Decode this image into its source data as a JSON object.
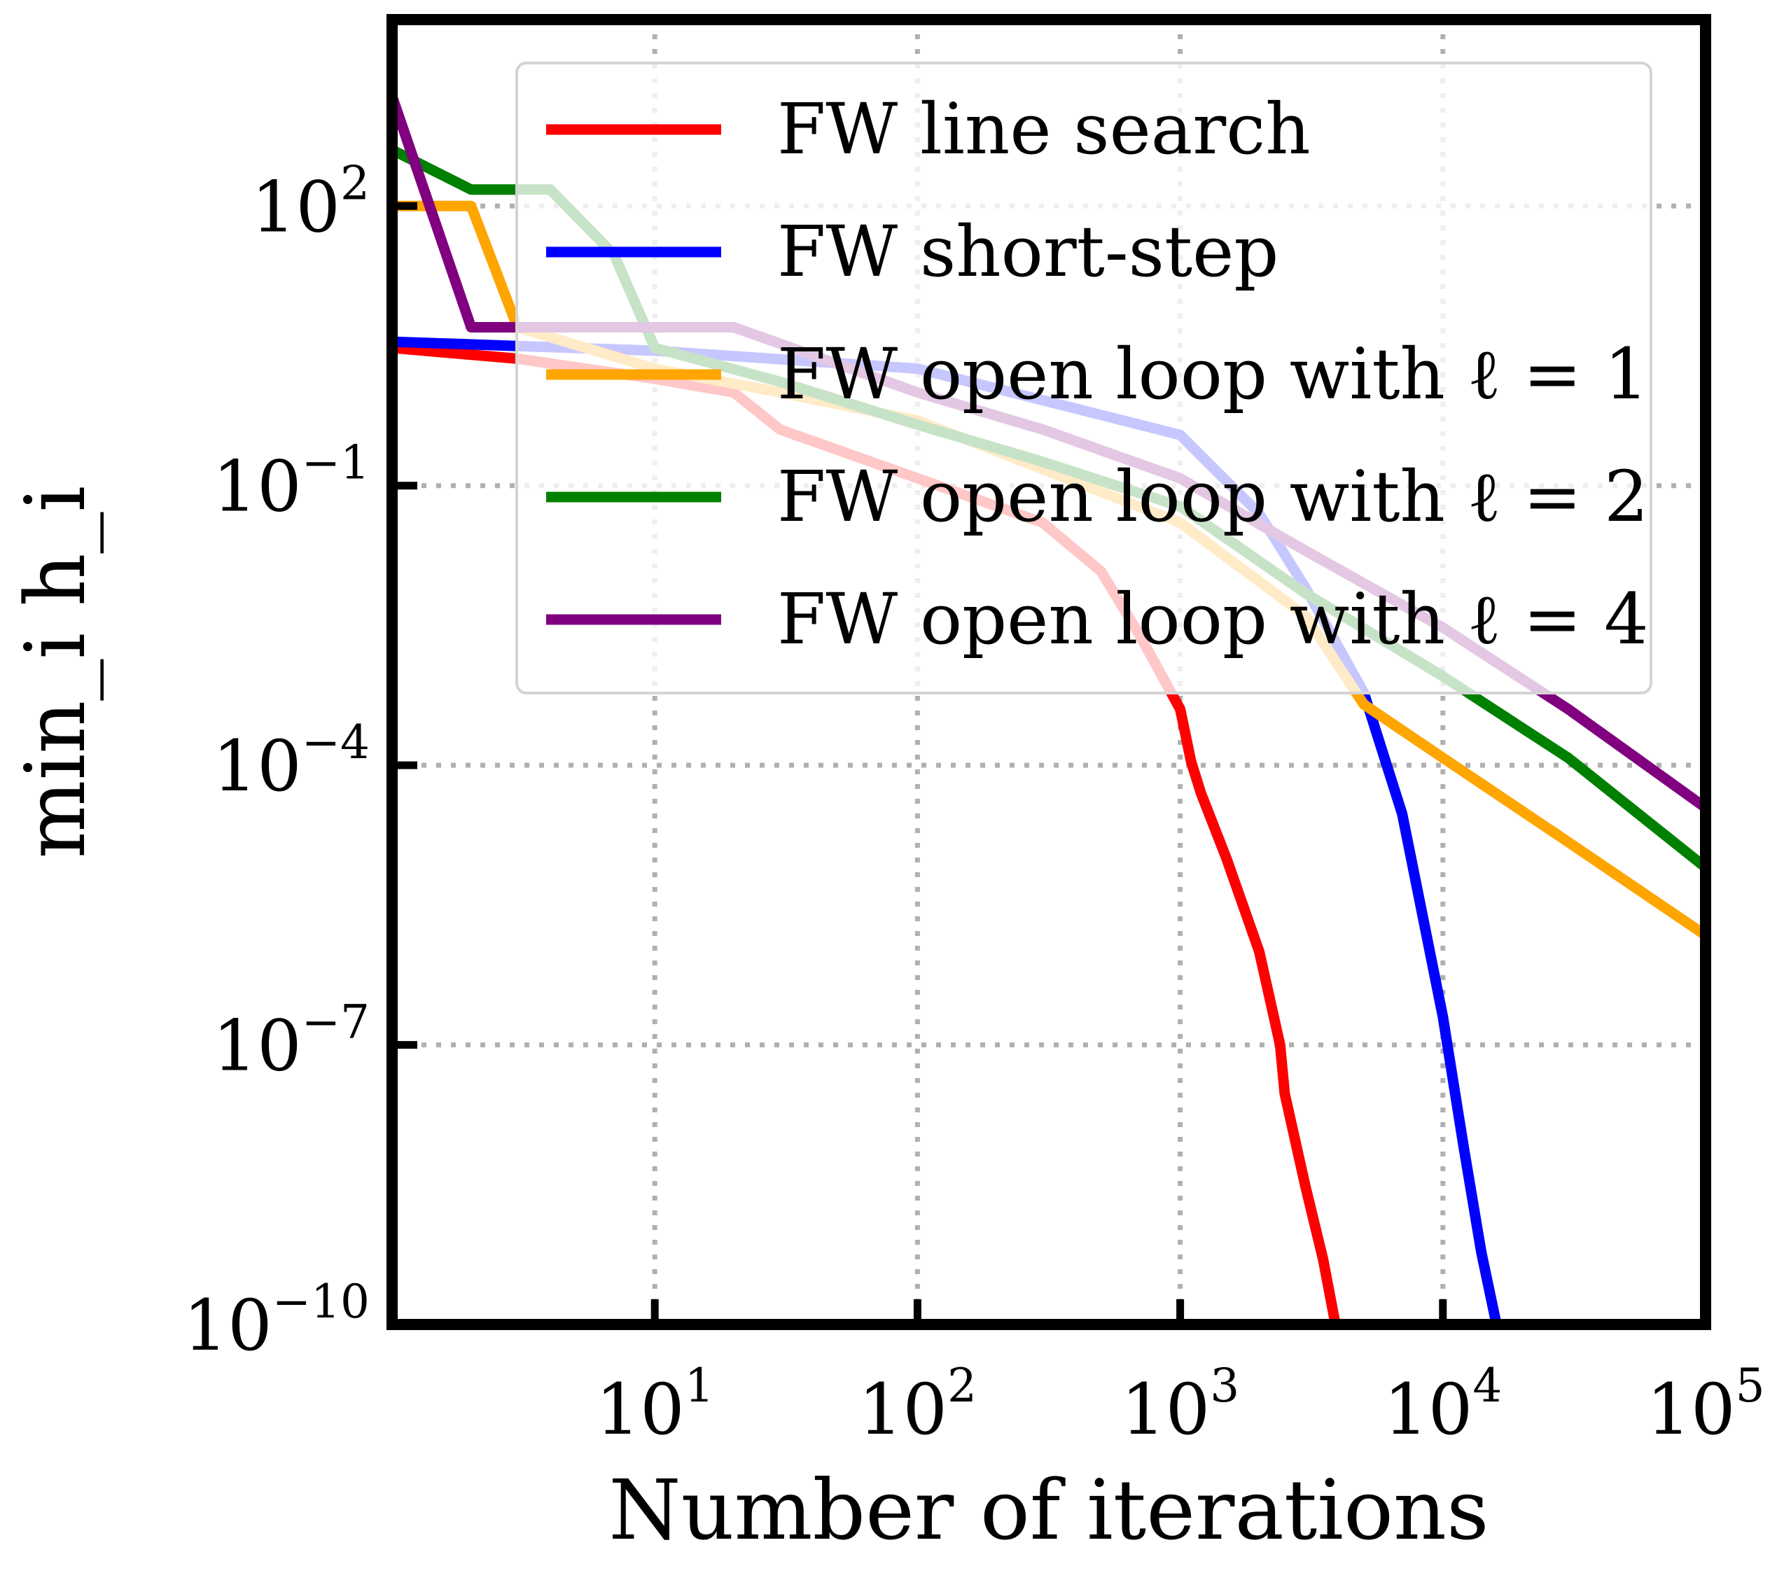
{
  "chart_data": {
    "type": "line",
    "xlabel": "Number of iterations",
    "ylabel": "min_i h_i",
    "xscale": "log",
    "yscale": "log",
    "xlim": [
      1,
      100000
    ],
    "ylim": [
      1e-10,
      10000
    ],
    "grid": true,
    "legend_position": "top-right",
    "x_tick_labels": [
      {
        "value": 10,
        "base": "10",
        "exp": "1"
      },
      {
        "value": 100,
        "base": "10",
        "exp": "2"
      },
      {
        "value": 1000,
        "base": "10",
        "exp": "3"
      },
      {
        "value": 10000,
        "base": "10",
        "exp": "4"
      },
      {
        "value": 100000,
        "base": "10",
        "exp": "5"
      }
    ],
    "y_tick_labels": [
      {
        "value": 1e-10,
        "base": "10",
        "exp": "−10"
      },
      {
        "value": 1e-07,
        "base": "10",
        "exp": "−7"
      },
      {
        "value": 0.0001,
        "base": "10",
        "exp": "−4"
      },
      {
        "value": 0.1,
        "base": "10",
        "exp": "−1"
      },
      {
        "value": 100,
        "base": "10",
        "exp": "2"
      }
    ],
    "series": [
      {
        "name": "FW line search",
        "color": "#ff0000",
        "points": [
          [
            1,
            3.0
          ],
          [
            3,
            2.3
          ],
          [
            10,
            1.4
          ],
          [
            20,
            1.0
          ],
          [
            30,
            0.4
          ],
          [
            100,
            0.12
          ],
          [
            300,
            0.04
          ],
          [
            500,
            0.012
          ],
          [
            700,
            0.0025
          ],
          [
            1000,
            0.0004
          ],
          [
            1100,
            0.00011
          ],
          [
            1200,
            5e-05
          ],
          [
            1500,
            1e-05
          ],
          [
            2000,
            1e-06
          ],
          [
            2400,
            1e-07
          ],
          [
            2500,
            3e-08
          ],
          [
            3000,
            3e-09
          ],
          [
            3500,
            5e-10
          ],
          [
            3900,
            1e-10
          ]
        ]
      },
      {
        "name": "FW short-step",
        "color": "#0000ff",
        "points": [
          [
            1,
            3.5
          ],
          [
            10,
            2.8
          ],
          [
            100,
            1.8
          ],
          [
            1000,
            0.35
          ],
          [
            2000,
            0.05
          ],
          [
            3000,
            0.008
          ],
          [
            5000,
            0.0006
          ],
          [
            7000,
            3e-05
          ],
          [
            10000,
            2e-07
          ],
          [
            12000,
            8e-09
          ],
          [
            14000,
            6e-10
          ],
          [
            16000,
            1e-10
          ]
        ]
      },
      {
        "name": "FW open loop with ℓ = 1",
        "color": "#ffa500",
        "points": [
          [
            1,
            100
          ],
          [
            2,
            100
          ],
          [
            3,
            5.0
          ],
          [
            10,
            1.8
          ],
          [
            30,
            1.0
          ],
          [
            100,
            0.5
          ],
          [
            300,
            0.15
          ],
          [
            1000,
            0.04
          ],
          [
            3000,
            0.004
          ],
          [
            5000,
            0.00045
          ],
          [
            10000,
            0.00012
          ],
          [
            30000,
            1.5e-05
          ],
          [
            100000,
            1.5e-06
          ]
        ]
      },
      {
        "name": "FW open loop with ℓ = 2",
        "color": "#008000",
        "points": [
          [
            1,
            400
          ],
          [
            2,
            150
          ],
          [
            4,
            150
          ],
          [
            7,
            30
          ],
          [
            10,
            3.0
          ],
          [
            30,
            1.3
          ],
          [
            100,
            0.45
          ],
          [
            300,
            0.18
          ],
          [
            1000,
            0.06
          ],
          [
            3000,
            0.007
          ],
          [
            10000,
            0.0009
          ],
          [
            30000,
            0.00012
          ],
          [
            100000,
            8e-06
          ]
        ]
      },
      {
        "name": "FW open loop with ℓ = 4",
        "color": "#800080",
        "points": [
          [
            1,
            1500
          ],
          [
            2,
            5.0
          ],
          [
            20,
            5.0
          ],
          [
            100,
            1.0
          ],
          [
            300,
            0.4
          ],
          [
            1000,
            0.12
          ],
          [
            3000,
            0.02
          ],
          [
            10000,
            0.003
          ],
          [
            30000,
            0.0004
          ],
          [
            100000,
            3.5e-05
          ]
        ]
      }
    ]
  }
}
